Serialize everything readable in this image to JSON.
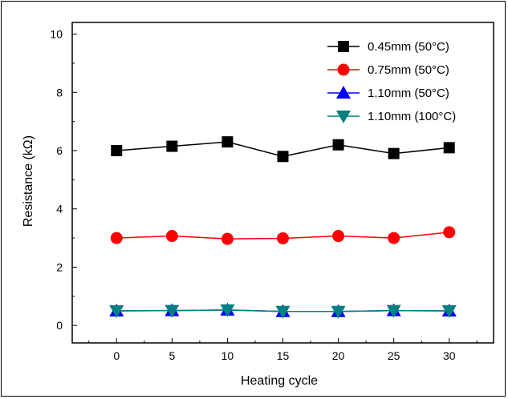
{
  "chart_data": {
    "type": "line",
    "title": "",
    "xlabel": "Heating cycle",
    "ylabel": "Resistance (kΩ)",
    "xlim": [
      -4,
      34
    ],
    "ylim": [
      -0.6,
      10.4
    ],
    "x": [
      0,
      5,
      10,
      15,
      20,
      25,
      30
    ],
    "x_ticks": [
      "0",
      "5",
      "10",
      "15",
      "20",
      "25",
      "30"
    ],
    "y_ticks": [
      "0",
      "2",
      "4",
      "6",
      "8",
      "10"
    ],
    "grid": false,
    "legend_position": "top-right",
    "series": [
      {
        "name": "0.45mm (50°C)",
        "marker": "square",
        "color": "#000000",
        "values": [
          6.0,
          6.15,
          6.3,
          5.8,
          6.2,
          5.9,
          6.1
        ]
      },
      {
        "name": "0.75mm (50°C)",
        "marker": "circle",
        "color": "#ff0000",
        "values": [
          3.0,
          3.07,
          2.97,
          2.99,
          3.07,
          3.0,
          3.2
        ]
      },
      {
        "name": "1.10mm (50°C)",
        "marker": "triangle-up",
        "color": "#0000ff",
        "values": [
          0.5,
          0.51,
          0.53,
          0.48,
          0.48,
          0.51,
          0.5
        ]
      },
      {
        "name": "1.10mm (100°C)",
        "marker": "triangle-down",
        "color": "#008080",
        "values": [
          0.5,
          0.51,
          0.53,
          0.48,
          0.48,
          0.51,
          0.5
        ]
      }
    ]
  }
}
